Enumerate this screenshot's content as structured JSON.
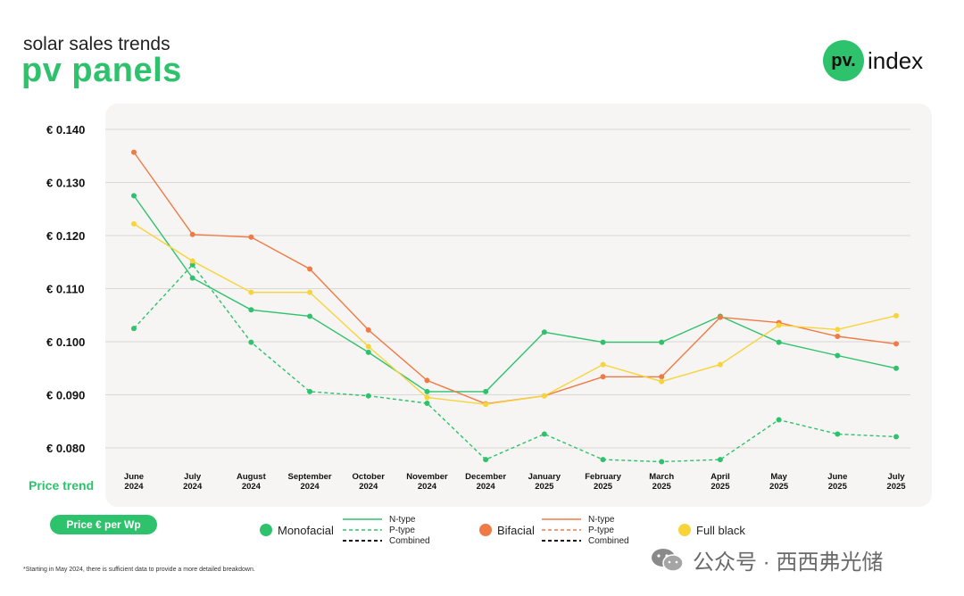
{
  "header": {
    "subtitle": "solar sales trends",
    "title": "pv panels"
  },
  "logo": {
    "mark": "pv.",
    "text": "index"
  },
  "side_label": "Price trend",
  "unit_pill": "Price € per Wp",
  "legend": {
    "monofacial": "Monofacial",
    "bifacial": "Bifacial",
    "full_black": "Full black",
    "n_type": "N-type",
    "p_type": "P-type",
    "combined": "Combined"
  },
  "footnote": "*Starting in May 2024, there is sufficient data to provide a more detailed breakdown.",
  "watermark": "公众号 · 西西弗光储",
  "colors": {
    "green": "#2ec26d",
    "orange": "#ef7a45",
    "yellow": "#f7d43a",
    "grid": "#d9d8d5"
  },
  "chart_data": {
    "type": "line",
    "months": [
      "June",
      "July",
      "August",
      "September",
      "October",
      "November",
      "December",
      "January",
      "February",
      "March",
      "April",
      "May",
      "June",
      "July"
    ],
    "years": [
      "2024",
      "2024",
      "2024",
      "2024",
      "2024",
      "2024",
      "2024",
      "2025",
      "2025",
      "2025",
      "2025",
      "2025",
      "2025",
      "2025"
    ],
    "ylim": [
      0.08,
      0.14
    ],
    "yticks": [
      "€ 0.140",
      "€ 0.130",
      "€ 0.120",
      "€ 0.110",
      "€ 0.100",
      "€ 0.090",
      "€ 0.080"
    ],
    "ytick_values": [
      0.14,
      0.13,
      0.12,
      0.11,
      0.1,
      0.09,
      0.08
    ],
    "grid": true,
    "series": [
      {
        "name": "Monofacial N-type",
        "color": "#2ec26d",
        "dashed": false,
        "values": [
          0.1275,
          0.112,
          0.106,
          0.1048,
          0.098,
          0.0906,
          0.0906,
          0.1018,
          0.0999,
          0.0999,
          0.1048,
          0.0999,
          0.0974,
          0.095
        ]
      },
      {
        "name": "Monofacial P-type",
        "color": "#2ec26d",
        "dashed": true,
        "values": [
          0.1025,
          0.1145,
          0.0999,
          0.0906,
          0.0898,
          0.0884,
          0.0778,
          0.0826,
          0.0778,
          0.0774,
          0.0778,
          0.0853,
          0.0826,
          0.0821
        ]
      },
      {
        "name": "Bifacial N-type",
        "color": "#ef7a45",
        "dashed": false,
        "values": [
          0.1357,
          0.1202,
          0.1197,
          0.1137,
          0.1022,
          0.0927,
          0.0883,
          0.0898,
          0.0934,
          0.0934,
          0.1046,
          0.1036,
          0.101,
          0.0996
        ]
      },
      {
        "name": "Full black",
        "color": "#f7d43a",
        "dashed": false,
        "values": [
          0.1222,
          0.1152,
          0.1093,
          0.1093,
          0.0991,
          0.0895,
          0.0882,
          0.0898,
          0.0957,
          0.0925,
          0.0957,
          0.1031,
          0.1023,
          0.1049
        ]
      }
    ]
  }
}
